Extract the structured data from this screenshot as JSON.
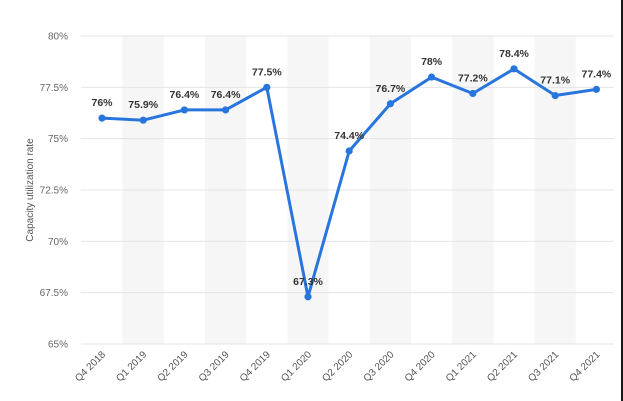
{
  "chart_data": {
    "type": "line",
    "categories": [
      "Q4 2018",
      "Q1 2019",
      "Q2 2019",
      "Q3 2019",
      "Q4 2019",
      "Q1 2020",
      "Q2 2020",
      "Q3 2020",
      "Q4 2020",
      "Q1 2021",
      "Q2 2021",
      "Q3 2021",
      "Q4 2021"
    ],
    "series": [
      {
        "values": [
          76,
          75.9,
          76.4,
          76.4,
          77.5,
          67.3,
          74.4,
          76.7,
          78,
          77.2,
          78.4,
          77.1,
          77.4
        ]
      }
    ],
    "data_labels": [
      "76%",
      "75.9%",
      "76.4%",
      "76.4%",
      "77.5%",
      "67.3%",
      "74.4%",
      "76.7%",
      "78%",
      "77.2%",
      "78.4%",
      "77.1%",
      "77.4%"
    ],
    "ylabel": "Capacity utilization rate",
    "ylim": [
      65,
      80
    ],
    "yticks": [
      65,
      67.5,
      70,
      72.5,
      75,
      77.5,
      80
    ],
    "ytick_labels": [
      "65%",
      "67.5%",
      "70%",
      "72.5%",
      "75%",
      "77.5%",
      "80%"
    ],
    "grid": true,
    "alternating_bands": true,
    "colors": {
      "line": "#2876dd",
      "band": "#f6f6f6",
      "grid": "#e4e4e4"
    }
  }
}
